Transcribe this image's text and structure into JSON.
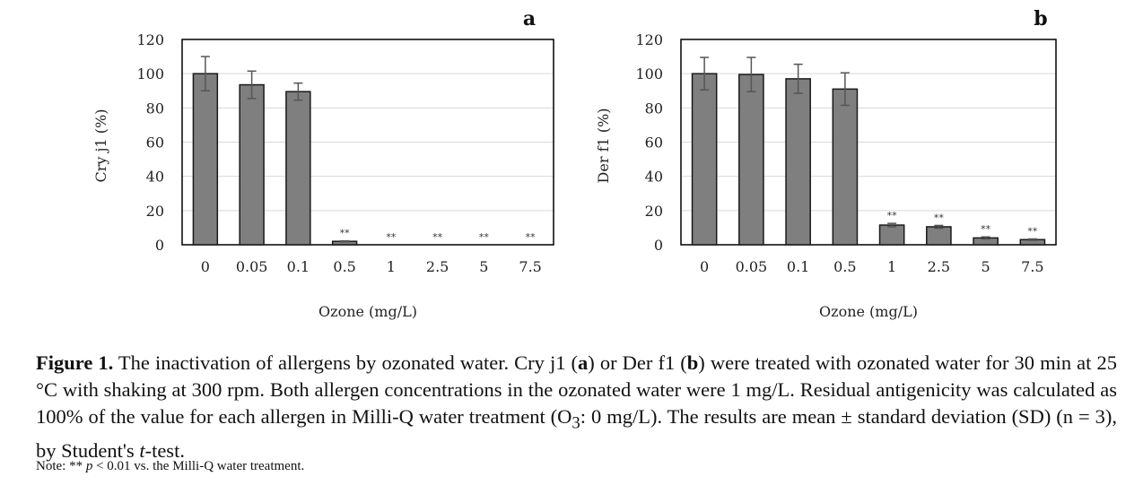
{
  "chart_data": [
    {
      "type": "bar",
      "panel_label": "a",
      "title": "",
      "xlabel": "Ozone (mg/L)",
      "ylabel": "Cry j1 (%)",
      "ylim": [
        0,
        120
      ],
      "yticks": [
        0,
        20,
        40,
        60,
        80,
        100,
        120
      ],
      "grid": true,
      "categories": [
        "0",
        "0.05",
        "0.1",
        "0.5",
        "1",
        "2.5",
        "5",
        "7.5"
      ],
      "values": [
        100,
        93.5,
        89.5,
        2,
        0,
        0,
        0,
        0
      ],
      "errors": [
        10,
        8,
        5,
        0.3,
        0,
        0,
        0,
        0
      ],
      "annotations": [
        "",
        "",
        "",
        "**",
        "**",
        "**",
        "**",
        "**"
      ]
    },
    {
      "type": "bar",
      "panel_label": "b",
      "title": "",
      "xlabel": "Ozone (mg/L)",
      "ylabel": "Der f1 (%)",
      "ylim": [
        0,
        120
      ],
      "yticks": [
        0,
        20,
        40,
        60,
        80,
        100,
        120
      ],
      "grid": true,
      "categories": [
        "0",
        "0.05",
        "0.1",
        "0.5",
        "1",
        "2.5",
        "5",
        "7.5"
      ],
      "values": [
        100,
        99.5,
        97,
        91,
        11.5,
        10.5,
        4,
        3
      ],
      "errors": [
        9.5,
        10,
        8.5,
        9.5,
        1,
        0.8,
        0.6,
        0.4
      ],
      "annotations": [
        "",
        "",
        "",
        "",
        "**",
        "**",
        "**",
        "**"
      ]
    }
  ],
  "caption": {
    "label": "Figure 1.",
    "text_1": " The inactivation of allergens by ozonated water.  Cry j1 (",
    "a": "a",
    "text_2": ") or Der f1 (",
    "b": "b",
    "text_3": ") were treated with ozonated water for 30 min at 25 °C with shaking at 300 rpm.  Both allergen concentrations in the ozonated water were 1 mg/L. Residual antigenicity was calculated as 100% of the value for each allergen in Milli-Q water treatment (O",
    "sub": "3",
    "text_4": ": 0 mg/L). The results are mean ± standard deviation (SD) (n = 3), by Student's ",
    "t": "t",
    "text_5": "-test."
  },
  "note": {
    "prefix": "Note: ** ",
    "p": "p",
    "suffix": " < 0.01 vs. the Milli-Q water treatment."
  }
}
